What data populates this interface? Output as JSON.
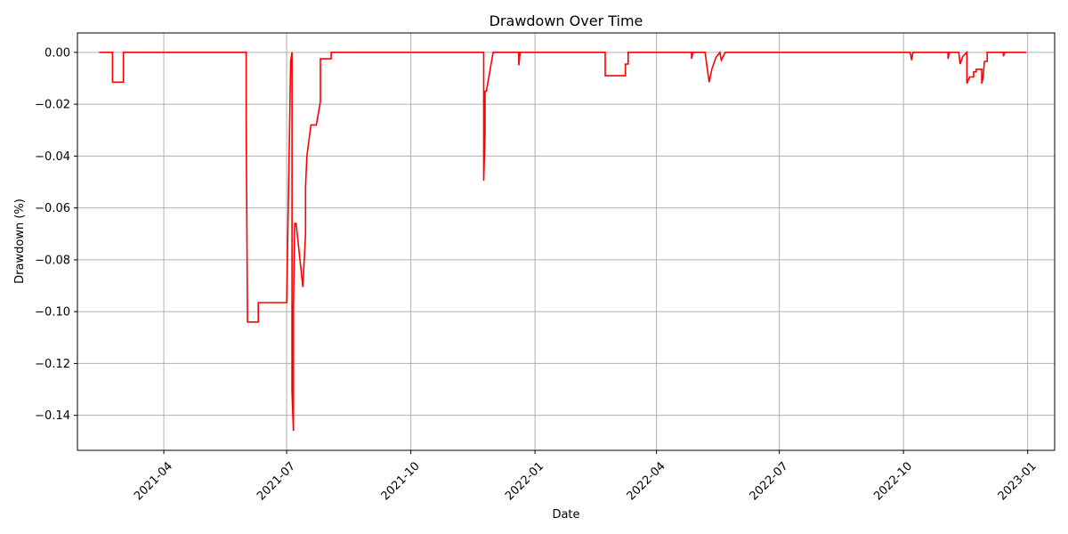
{
  "chart_data": {
    "type": "line",
    "title": "Drawdown Over Time",
    "xlabel": "Date",
    "ylabel": "Drawdown (%)",
    "xlim": [
      "2021-01-27",
      "2023-01-21"
    ],
    "ylim": [
      -0.1535,
      0.0075
    ],
    "grid": true,
    "line_color": "#ff0000",
    "x_ticks": [
      "2021-04",
      "2021-07",
      "2021-10",
      "2022-01",
      "2022-04",
      "2022-07",
      "2022-10",
      "2023-01"
    ],
    "x_tick_dates": [
      "2021-04-01",
      "2021-07-01",
      "2021-10-01",
      "2022-01-01",
      "2022-04-01",
      "2022-07-01",
      "2022-10-01",
      "2023-01-01"
    ],
    "y_ticks": [
      "0.00",
      "−0.02",
      "−0.04",
      "−0.06",
      "−0.08",
      "−0.10",
      "−0.12",
      "−0.14"
    ],
    "y_tick_values": [
      0,
      -0.02,
      -0.04,
      -0.06,
      -0.08,
      -0.1,
      -0.12,
      -0.14
    ],
    "series": [
      {
        "x": [
          "2021-02-12",
          "2021-02-22",
          "2021-02-22",
          "2021-03-02",
          "2021-03-02",
          "2021-06-01",
          "2021-06-01",
          "2021-06-02",
          "2021-06-02",
          "2021-06-10",
          "2021-06-10",
          "2021-07-01",
          "2021-07-01",
          "2021-07-04",
          "2021-07-04",
          "2021-07-05",
          "2021-07-05",
          "2021-07-06",
          "2021-07-06",
          "2021-07-07",
          "2021-07-07",
          "2021-07-08",
          "2021-07-08",
          "2021-07-13",
          "2021-07-13",
          "2021-07-15",
          "2021-07-15",
          "2021-07-16",
          "2021-07-19",
          "2021-07-19",
          "2021-07-23",
          "2021-07-26",
          "2021-07-26",
          "2021-08-03",
          "2021-08-03",
          "2021-11-24",
          "2021-11-24",
          "2021-11-25",
          "2021-11-25",
          "2021-11-26",
          "2021-11-26",
          "2021-12-01",
          "2021-12-01",
          "2021-12-20",
          "2021-12-20",
          "2021-12-21",
          "2021-12-21",
          "2022-02-22",
          "2022-02-22",
          "2022-03-09",
          "2022-03-09",
          "2022-03-11",
          "2022-03-11",
          "2022-04-27",
          "2022-04-27",
          "2022-04-28",
          "2022-04-28",
          "2022-05-07",
          "2022-05-10",
          "2022-05-12",
          "2022-05-12",
          "2022-05-15",
          "2022-05-18",
          "2022-05-19",
          "2022-05-21",
          "2022-05-22",
          "2022-10-06",
          "2022-10-07",
          "2022-10-08",
          "2022-11-03",
          "2022-11-03",
          "2022-11-04",
          "2022-11-04",
          "2022-11-11",
          "2022-11-12",
          "2022-11-14",
          "2022-11-17",
          "2022-11-17",
          "2022-11-19",
          "2022-11-19",
          "2022-11-22",
          "2022-11-22",
          "2022-11-24",
          "2022-11-24",
          "2022-11-28",
          "2022-11-28",
          "2022-11-29",
          "2022-11-30",
          "2022-12-02",
          "2022-12-02",
          "2022-12-03",
          "2022-12-03",
          "2022-12-06",
          "2022-12-06",
          "2022-12-14",
          "2022-12-14",
          "2022-12-15",
          "2022-12-15",
          "2022-12-31"
        ],
        "values": [
          0,
          0,
          -0.0115,
          -0.0115,
          0,
          0,
          -0.026,
          -0.104,
          -0.104,
          -0.104,
          -0.0965,
          -0.0965,
          -0.0965,
          -0.0035,
          -0.0035,
          0,
          -0.131,
          -0.146,
          -0.098,
          -0.066,
          -0.066,
          -0.066,
          -0.066,
          -0.0905,
          -0.0905,
          -0.07,
          -0.052,
          -0.04,
          -0.028,
          -0.028,
          -0.028,
          -0.019,
          -0.0025,
          -0.0025,
          0,
          0,
          -0.0495,
          -0.031,
          -0.015,
          -0.015,
          -0.015,
          0,
          0,
          0,
          -0.005,
          0,
          0,
          0,
          -0.009,
          -0.009,
          -0.0045,
          -0.0045,
          0,
          0,
          -0.0025,
          0,
          0,
          0,
          -0.0115,
          -0.0065,
          -0.0065,
          -0.002,
          0,
          -0.003,
          -0.001,
          0,
          0,
          -0.003,
          0,
          0,
          -0.0025,
          0,
          0,
          0,
          -0.0045,
          -0.0015,
          0,
          -0.012,
          -0.0095,
          -0.0095,
          -0.0095,
          -0.0075,
          -0.0075,
          -0.0065,
          -0.0065,
          -0.012,
          -0.0095,
          -0.0035,
          -0.0035,
          0,
          0,
          0,
          0,
          0,
          0,
          -0.0015,
          0,
          0,
          0
        ]
      }
    ]
  }
}
